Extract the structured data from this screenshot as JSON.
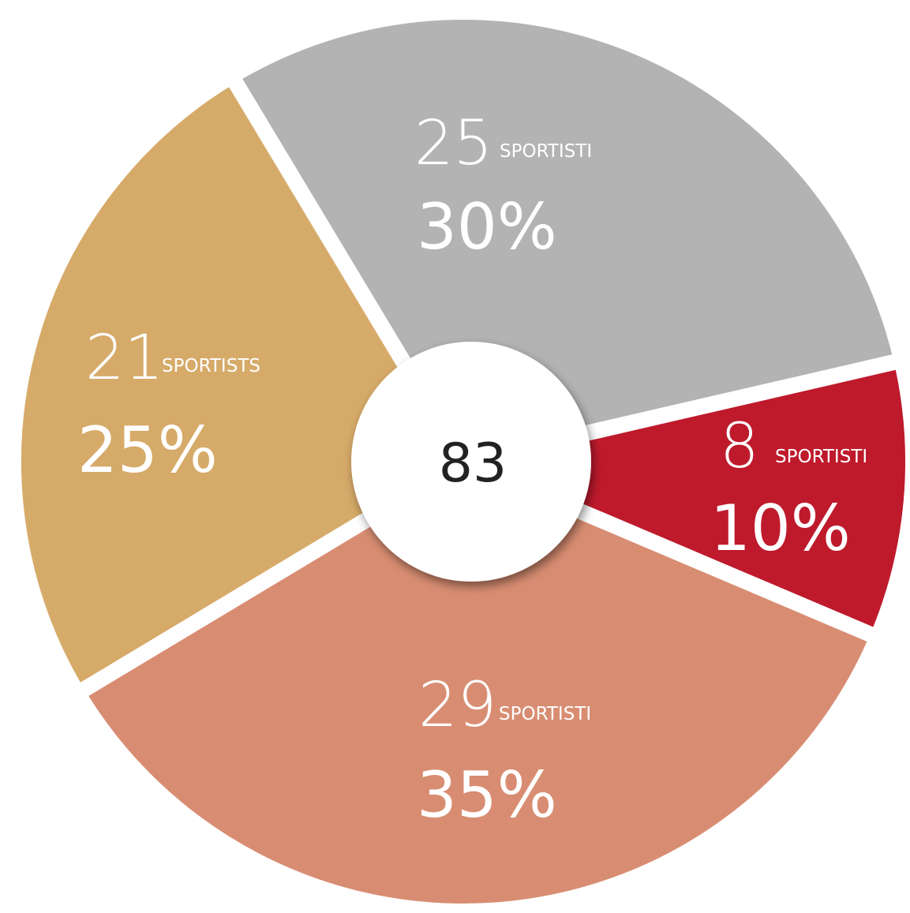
{
  "chart_data": {
    "type": "pie",
    "categories": [
      "SPORTISTI",
      "SPORTISTI",
      "SPORTISTI",
      "SPORTISTS"
    ],
    "counts": [
      25,
      8,
      29,
      21
    ],
    "values": [
      30,
      10,
      35,
      25
    ],
    "value_labels": [
      "30%",
      "10%",
      "35%",
      "25%"
    ],
    "colors": [
      "#b3b3b3",
      "#be1a2c",
      "#d88d72",
      "#d6aa69"
    ],
    "total": 83
  }
}
